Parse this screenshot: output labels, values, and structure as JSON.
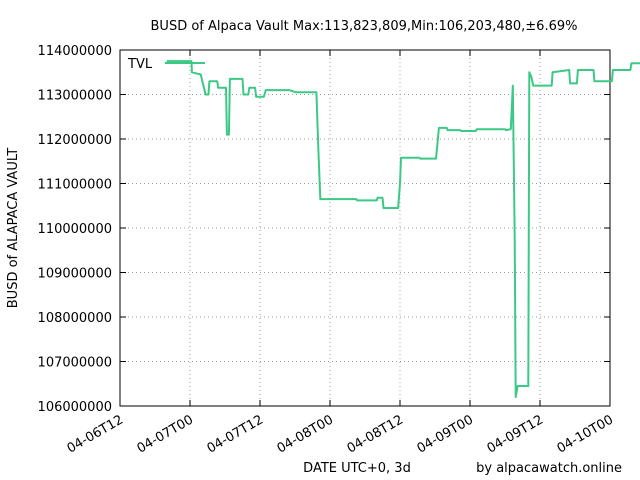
{
  "chart_data": {
    "type": "line",
    "title": "BUSD of Alpaca Vault Max:113,823,809,Min:106,203,480,±6.69%",
    "xlabel": "DATE UTC+0, 3d",
    "ylabel": "BUSD of ALAPACA VAULT",
    "credit": "by alpacawatch.online",
    "x_range": [
      "04-06T12",
      "04-10T00"
    ],
    "ylim": [
      106000000,
      114000000
    ],
    "grid": true,
    "legend_position": "top-left",
    "y_ticks": [
      {
        "value": 106000000,
        "label": "106000000"
      },
      {
        "value": 107000000,
        "label": "107000000"
      },
      {
        "value": 108000000,
        "label": "108000000"
      },
      {
        "value": 109000000,
        "label": "109000000"
      },
      {
        "value": 110000000,
        "label": "110000000"
      },
      {
        "value": 111000000,
        "label": "111000000"
      },
      {
        "value": 112000000,
        "label": "112000000"
      },
      {
        "value": 113000000,
        "label": "113000000"
      },
      {
        "value": 114000000,
        "label": "114000000"
      }
    ],
    "x_ticks": [
      {
        "value": "04-06T12",
        "label": "04-06T12"
      },
      {
        "value": "04-07T00",
        "label": "04-07T00"
      },
      {
        "value": "04-07T12",
        "label": "04-07T12"
      },
      {
        "value": "04-08T00",
        "label": "04-08T00"
      },
      {
        "value": "04-08T12",
        "label": "04-08T12"
      },
      {
        "value": "04-09T00",
        "label": "04-09T00"
      },
      {
        "value": "04-09T12",
        "label": "04-09T12"
      },
      {
        "value": "04-10T00",
        "label": "04-10T00"
      }
    ],
    "series": [
      {
        "name": "TVL",
        "color": "#3cc985",
        "points": [
          [
            "04-06T20:00",
            113750000
          ],
          [
            "04-07T00:15",
            113750000
          ],
          [
            "04-07T00:20",
            113500000
          ],
          [
            "04-07T01:50",
            113450000
          ],
          [
            "04-07T02:40",
            113000000
          ],
          [
            "04-07T03:10",
            113000000
          ],
          [
            "04-07T03:20",
            113300000
          ],
          [
            "04-07T04:40",
            113300000
          ],
          [
            "04-07T04:50",
            113150000
          ],
          [
            "04-07T06:10",
            113150000
          ],
          [
            "04-07T06:20",
            112100000
          ],
          [
            "04-07T06:40",
            112100000
          ],
          [
            "04-07T06:50",
            113350000
          ],
          [
            "04-07T09:00",
            113350000
          ],
          [
            "04-07T09:10",
            113000000
          ],
          [
            "04-07T10:00",
            113000000
          ],
          [
            "04-07T10:10",
            113150000
          ],
          [
            "04-07T11:10",
            113150000
          ],
          [
            "04-07T11:20",
            112950000
          ],
          [
            "04-07T12:40",
            112950000
          ],
          [
            "04-07T13:00",
            113100000
          ],
          [
            "04-07T17:00",
            113100000
          ],
          [
            "04-07T18:10",
            113050000
          ],
          [
            "04-07T21:40",
            113050000
          ],
          [
            "04-07T22:00",
            111800000
          ],
          [
            "04-07T22:20",
            110650000
          ],
          [
            "04-08T04:30",
            110650000
          ],
          [
            "04-08T04:40",
            110620000
          ],
          [
            "04-08T08:00",
            110620000
          ],
          [
            "04-08T08:10",
            110680000
          ],
          [
            "04-08T09:00",
            110680000
          ],
          [
            "04-08T09:10",
            110450000
          ],
          [
            "04-08T11:40",
            110450000
          ],
          [
            "04-08T12:00",
            111000000
          ],
          [
            "04-08T12:10",
            111580000
          ],
          [
            "04-08T15:20",
            111580000
          ],
          [
            "04-08T15:30",
            111560000
          ],
          [
            "04-08T18:10",
            111560000
          ],
          [
            "04-08T18:30",
            112000000
          ],
          [
            "04-08T18:40",
            112250000
          ],
          [
            "04-08T20:00",
            112250000
          ],
          [
            "04-08T20:10",
            112200000
          ],
          [
            "04-08T22:20",
            112200000
          ],
          [
            "04-08T22:30",
            112180000
          ],
          [
            "04-09T01:00",
            112180000
          ],
          [
            "04-09T01:10",
            112220000
          ],
          [
            "04-09T06:00",
            112220000
          ],
          [
            "04-09T06:10",
            112200000
          ],
          [
            "04-09T07:00",
            112220000
          ],
          [
            "04-09T07:10",
            112700000
          ],
          [
            "04-09T07:20",
            113200000
          ],
          [
            "04-09T07:40",
            109800000
          ],
          [
            "04-09T07:50",
            106200000
          ],
          [
            "04-09T08:10",
            106450000
          ],
          [
            "04-09T10:00",
            106450000
          ],
          [
            "04-09T10:10",
            113500000
          ],
          [
            "04-09T10:30",
            113400000
          ],
          [
            "04-09T10:50",
            113200000
          ],
          [
            "04-09T14:00",
            113200000
          ],
          [
            "04-09T14:10",
            113500000
          ],
          [
            "04-09T17:00",
            113550000
          ],
          [
            "04-09T17:10",
            113250000
          ],
          [
            "04-09T18:20",
            113250000
          ],
          [
            "04-09T18:30",
            113550000
          ],
          [
            "04-09T21:10",
            113550000
          ],
          [
            "04-09T21:20",
            113300000
          ],
          [
            "04-10T00:20",
            113300000
          ],
          [
            "04-10T00:30",
            113550000
          ],
          [
            "04-10T03:30",
            113550000
          ],
          [
            "04-10T03:40",
            113700000
          ],
          [
            "04-10T05:50",
            113700000
          ]
        ]
      }
    ]
  }
}
